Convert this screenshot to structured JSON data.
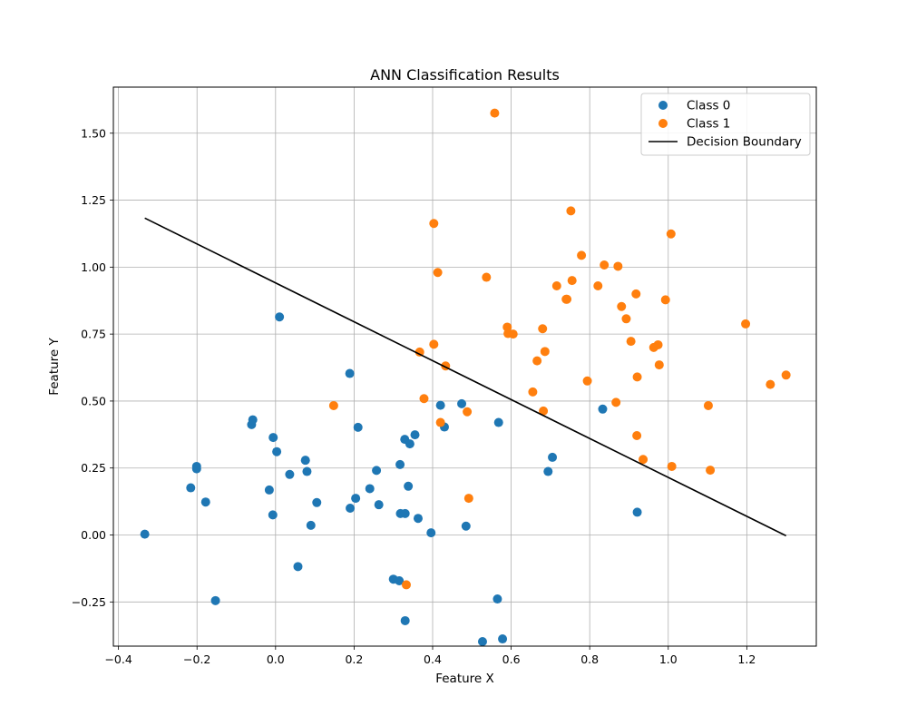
{
  "chart_data": {
    "type": "scatter",
    "title": "ANN Classification Results",
    "xlabel": "Feature X",
    "ylabel": "Feature Y",
    "xlim": [
      -0.413,
      1.377
    ],
    "ylim": [
      -0.415,
      1.672
    ],
    "xticks": [
      -0.4,
      -0.2,
      0.0,
      0.2,
      0.4,
      0.6,
      0.8,
      1.0,
      1.2
    ],
    "xtick_labels": [
      "−0.4",
      "−0.2",
      "0.0",
      "0.2",
      "0.4",
      "0.6",
      "0.8",
      "1.0",
      "1.2"
    ],
    "yticks": [
      -0.25,
      0.0,
      0.25,
      0.5,
      0.75,
      1.0,
      1.25,
      1.5
    ],
    "ytick_labels": [
      "−0.25",
      "0.00",
      "0.25",
      "0.50",
      "0.75",
      "1.00",
      "1.25",
      "1.50"
    ],
    "grid": true,
    "legend_position": "top-right",
    "series": [
      {
        "name": "Class 0",
        "kind": "scatter",
        "color": "#1f77b4",
        "points": [
          [
            -0.333,
            0.003
          ],
          [
            -0.153,
            -0.245
          ],
          [
            -0.178,
            0.123
          ],
          [
            -0.216,
            0.176
          ],
          [
            -0.201,
            0.256
          ],
          [
            -0.201,
            0.247
          ],
          [
            -0.061,
            0.412
          ],
          [
            -0.058,
            0.43
          ],
          [
            -0.006,
            0.364
          ],
          [
            0.003,
            0.311
          ],
          [
            0.01,
            0.814
          ],
          [
            -0.016,
            0.168
          ],
          [
            -0.007,
            0.075
          ],
          [
            0.036,
            0.226
          ],
          [
            0.057,
            -0.118
          ],
          [
            0.076,
            0.279
          ],
          [
            0.08,
            0.237
          ],
          [
            0.09,
            0.036
          ],
          [
            0.105,
            0.121
          ],
          [
            0.189,
            0.603
          ],
          [
            0.19,
            0.1
          ],
          [
            0.204,
            0.137
          ],
          [
            0.21,
            0.402
          ],
          [
            0.24,
            0.173
          ],
          [
            0.257,
            0.241
          ],
          [
            0.263,
            0.113
          ],
          [
            0.3,
            -0.165
          ],
          [
            0.315,
            -0.171
          ],
          [
            0.317,
            0.263
          ],
          [
            0.318,
            0.08
          ],
          [
            0.33,
            0.08
          ],
          [
            0.33,
            -0.32
          ],
          [
            0.329,
            0.357
          ],
          [
            0.338,
            0.182
          ],
          [
            0.342,
            0.34
          ],
          [
            0.355,
            0.374
          ],
          [
            0.363,
            0.062
          ],
          [
            0.396,
            0.008
          ],
          [
            0.42,
            0.484
          ],
          [
            0.43,
            0.403
          ],
          [
            0.474,
            0.49
          ],
          [
            0.485,
            0.033
          ],
          [
            0.527,
            -0.398
          ],
          [
            0.565,
            -0.239
          ],
          [
            0.568,
            0.42
          ],
          [
            0.578,
            -0.388
          ],
          [
            0.694,
            0.237
          ],
          [
            0.705,
            0.29
          ],
          [
            0.833,
            0.47
          ],
          [
            0.921,
            0.085
          ]
        ]
      },
      {
        "name": "Class 1",
        "kind": "scatter",
        "color": "#ff7f0e",
        "points": [
          [
            0.148,
            0.483
          ],
          [
            0.333,
            -0.186
          ],
          [
            0.367,
            0.683
          ],
          [
            0.378,
            0.509
          ],
          [
            0.403,
            0.712
          ],
          [
            0.403,
            1.163
          ],
          [
            0.413,
            0.98
          ],
          [
            0.42,
            0.42
          ],
          [
            0.433,
            0.631
          ],
          [
            0.488,
            0.46
          ],
          [
            0.492,
            0.137
          ],
          [
            0.537,
            0.962
          ],
          [
            0.558,
            1.575
          ],
          [
            0.59,
            0.776
          ],
          [
            0.592,
            0.752
          ],
          [
            0.605,
            0.75
          ],
          [
            0.655,
            0.534
          ],
          [
            0.666,
            0.65
          ],
          [
            0.68,
            0.77
          ],
          [
            0.682,
            0.463
          ],
          [
            0.686,
            0.685
          ],
          [
            0.716,
            0.93
          ],
          [
            0.74,
            0.88
          ],
          [
            0.742,
            0.88
          ],
          [
            0.752,
            1.21
          ],
          [
            0.755,
            0.95
          ],
          [
            0.779,
            1.044
          ],
          [
            0.794,
            0.575
          ],
          [
            0.821,
            0.93
          ],
          [
            0.837,
            1.008
          ],
          [
            0.867,
            0.495
          ],
          [
            0.872,
            1.003
          ],
          [
            0.881,
            0.853
          ],
          [
            0.893,
            0.807
          ],
          [
            0.905,
            0.723
          ],
          [
            0.918,
            0.9
          ],
          [
            0.92,
            0.371
          ],
          [
            0.921,
            0.59
          ],
          [
            0.936,
            0.282
          ],
          [
            0.963,
            0.7
          ],
          [
            0.974,
            0.71
          ],
          [
            0.977,
            0.635
          ],
          [
            0.993,
            0.878
          ],
          [
            1.007,
            1.124
          ],
          [
            1.009,
            0.256
          ],
          [
            1.102,
            0.483
          ],
          [
            1.107,
            0.242
          ],
          [
            1.197,
            0.788
          ],
          [
            1.26,
            0.562
          ],
          [
            1.3,
            0.597
          ]
        ]
      },
      {
        "name": "Decision Boundary",
        "kind": "line",
        "color": "#000000",
        "points": [
          [
            -0.333,
            1.183
          ],
          [
            1.3,
            -0.003
          ]
        ]
      }
    ]
  }
}
